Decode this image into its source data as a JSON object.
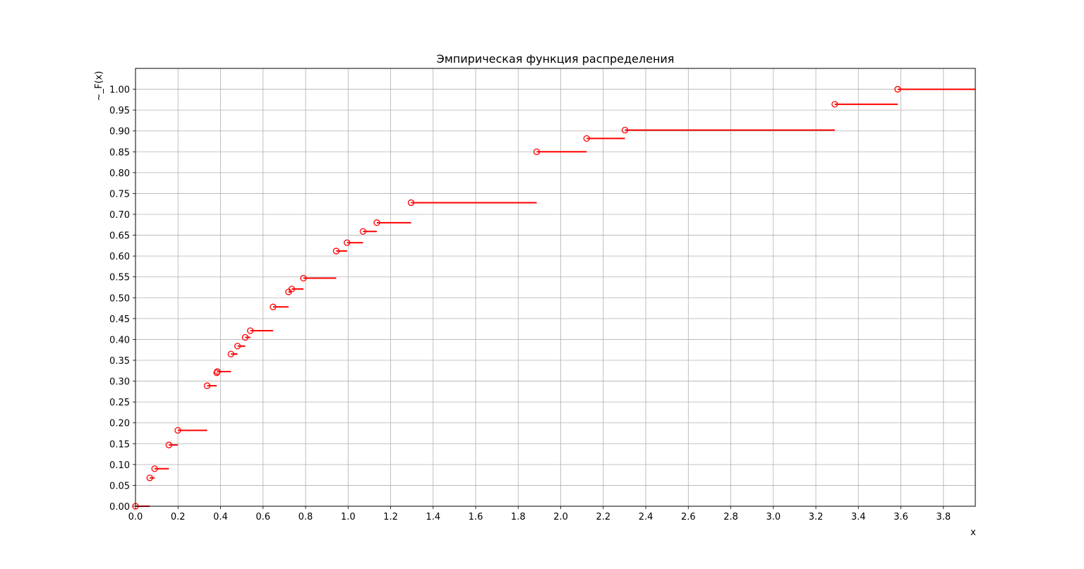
{
  "chart_data": {
    "type": "line",
    "style": "step",
    "title": "Эмпирическая функция распределения",
    "xlabel": "x",
    "ylabel": "~_F(x)",
    "xlim": [
      0.0,
      3.95
    ],
    "ylim": [
      0.0,
      1.05
    ],
    "xticks": [
      "0.0",
      "0.2",
      "0.4",
      "0.6",
      "0.8",
      "1.0",
      "1.2",
      "1.4",
      "1.6",
      "1.8",
      "2.0",
      "2.2",
      "2.4",
      "2.6",
      "2.8",
      "3.0",
      "3.2",
      "3.4",
      "3.6",
      "3.8"
    ],
    "yticks": [
      "0.00",
      "0.05",
      "0.10",
      "0.15",
      "0.20",
      "0.25",
      "0.30",
      "0.35",
      "0.40",
      "0.45",
      "0.50",
      "0.55",
      "0.60",
      "0.65",
      "0.70",
      "0.75",
      "0.80",
      "0.85",
      "0.90",
      "0.95",
      "1.00"
    ],
    "grid": true,
    "color": "#ff0000",
    "series": [
      {
        "steps": [
          {
            "x_start": 0.0,
            "x_end": 0.067,
            "y": 0.0
          },
          {
            "x_start": 0.067,
            "x_end": 0.09,
            "y": 0.068
          },
          {
            "x_start": 0.09,
            "x_end": 0.157,
            "y": 0.09
          },
          {
            "x_start": 0.157,
            "x_end": 0.199,
            "y": 0.147
          },
          {
            "x_start": 0.199,
            "x_end": 0.337,
            "y": 0.182
          },
          {
            "x_start": 0.337,
            "x_end": 0.382,
            "y": 0.289
          },
          {
            "x_start": 0.382,
            "x_end": 0.385,
            "y": 0.32
          },
          {
            "x_start": 0.385,
            "x_end": 0.449,
            "y": 0.323
          },
          {
            "x_start": 0.449,
            "x_end": 0.48,
            "y": 0.365
          },
          {
            "x_start": 0.48,
            "x_end": 0.516,
            "y": 0.384
          },
          {
            "x_start": 0.516,
            "x_end": 0.54,
            "y": 0.405
          },
          {
            "x_start": 0.54,
            "x_end": 0.647,
            "y": 0.421
          },
          {
            "x_start": 0.647,
            "x_end": 0.72,
            "y": 0.478
          },
          {
            "x_start": 0.72,
            "x_end": 0.735,
            "y": 0.514
          },
          {
            "x_start": 0.735,
            "x_end": 0.79,
            "y": 0.521
          },
          {
            "x_start": 0.79,
            "x_end": 0.944,
            "y": 0.547
          },
          {
            "x_start": 0.944,
            "x_end": 0.995,
            "y": 0.612
          },
          {
            "x_start": 0.995,
            "x_end": 1.07,
            "y": 0.632
          },
          {
            "x_start": 1.07,
            "x_end": 1.135,
            "y": 0.659
          },
          {
            "x_start": 1.135,
            "x_end": 1.296,
            "y": 0.68
          },
          {
            "x_start": 1.296,
            "x_end": 1.887,
            "y": 0.728
          },
          {
            "x_start": 1.887,
            "x_end": 2.122,
            "y": 0.85
          },
          {
            "x_start": 2.122,
            "x_end": 2.302,
            "y": 0.882
          },
          {
            "x_start": 2.302,
            "x_end": 3.289,
            "y": 0.902
          },
          {
            "x_start": 3.289,
            "x_end": 3.585,
            "y": 0.964
          },
          {
            "x_start": 3.585,
            "x_end": 3.95,
            "y": 1.0
          }
        ]
      }
    ]
  }
}
